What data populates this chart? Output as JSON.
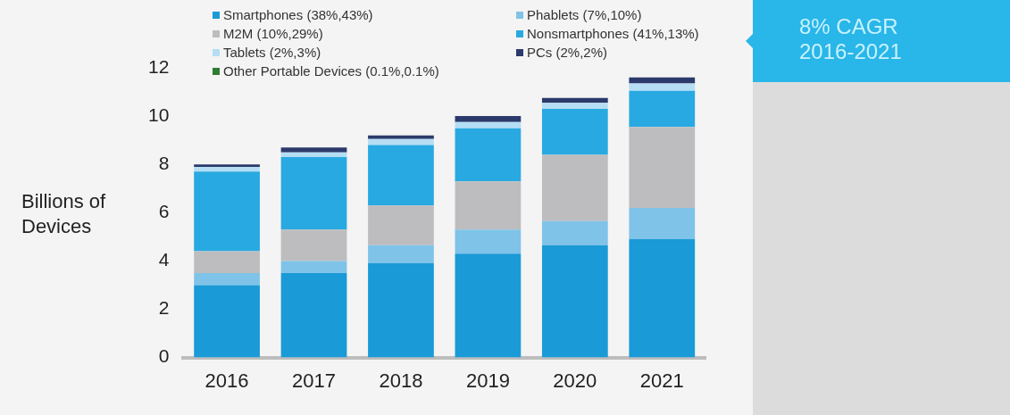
{
  "chart_data": {
    "type": "bar",
    "stacked": true,
    "ylabel": "Billions of Devices",
    "categories": [
      "2016",
      "2017",
      "2018",
      "2019",
      "2020",
      "2021"
    ],
    "series": [
      {
        "name": "Smartphones (38%,43%)",
        "color": "#1a9ad6",
        "values": [
          3.0,
          3.5,
          3.9,
          4.3,
          4.65,
          4.9
        ]
      },
      {
        "name": "Phablets (7%,10%)",
        "color": "#7fc3e8",
        "values": [
          0.5,
          0.5,
          0.75,
          1.0,
          1.0,
          1.3
        ]
      },
      {
        "name": "M2M (10%,29%)",
        "color": "#bdbdbf",
        "values": [
          0.9,
          1.3,
          1.65,
          2.0,
          2.75,
          3.35
        ]
      },
      {
        "name": "Nonsmartphones (41%,13%)",
        "color": "#29a9e1",
        "values": [
          3.3,
          3.0,
          2.5,
          2.2,
          1.9,
          1.5
        ]
      },
      {
        "name": "Tablets (2%,3%)",
        "color": "#b5def4",
        "values": [
          0.2,
          0.2,
          0.25,
          0.25,
          0.25,
          0.3
        ]
      },
      {
        "name": "PCs (2%,2%)",
        "color": "#2b3a6b",
        "values": [
          0.1,
          0.2,
          0.15,
          0.25,
          0.2,
          0.25
        ]
      },
      {
        "name": "Other Portable Devices (0.1%,0.1%)",
        "color": "#2e7d32",
        "values": [
          0,
          0,
          0,
          0,
          0,
          0
        ]
      }
    ],
    "ylim": [
      0,
      12
    ],
    "yticks": [
      0,
      2,
      4,
      6,
      8,
      10,
      12
    ],
    "grid": false,
    "legend": "top left",
    "annotations": [
      "8% CAGR",
      "2016-2021"
    ]
  }
}
